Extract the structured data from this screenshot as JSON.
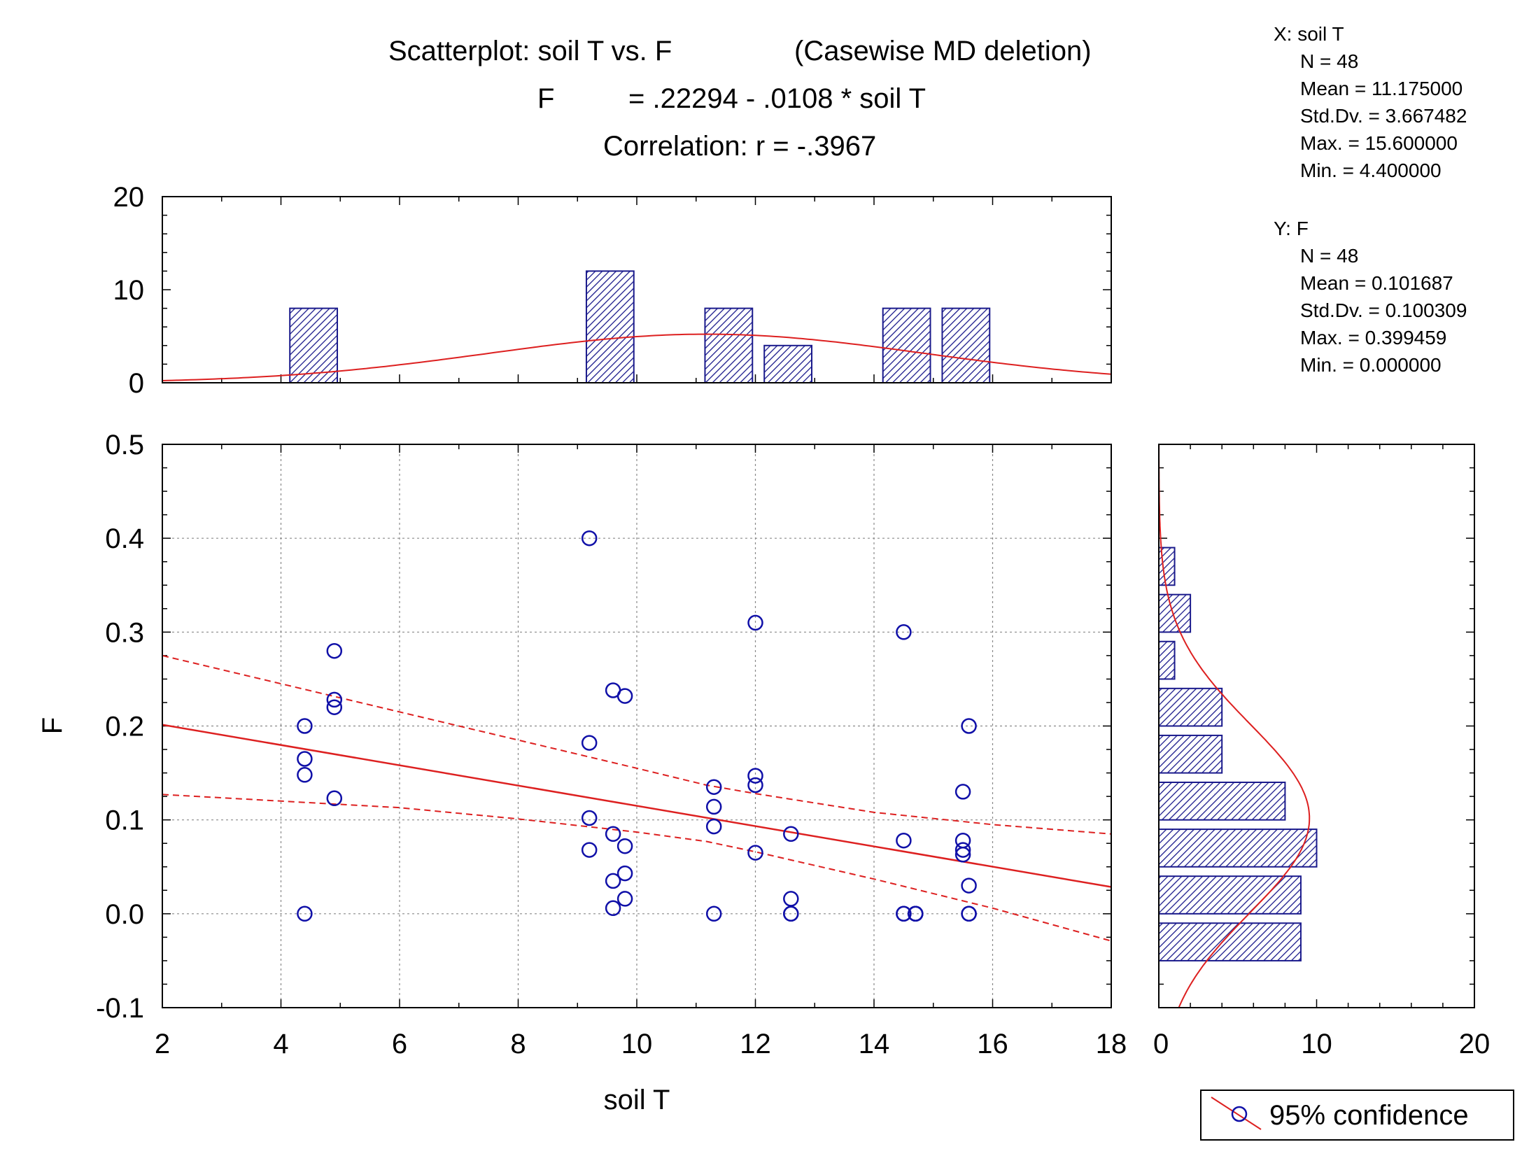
{
  "title": {
    "line1": "Scatterplot: soil T vs. F",
    "line1_suffix": "(Casewise MD deletion)",
    "line2_lhs": "F",
    "line2_rhs": "= .22294 - .0108  * soil T",
    "line3": "Correlation: r = -.3967"
  },
  "stats": {
    "x": [
      "X:  soil T",
      "N = 48",
      "Mean = 11.175000",
      "Std.Dv. = 3.667482",
      "Max. = 15.600000",
      "Min. = 4.400000"
    ],
    "y": [
      "Y:  F",
      "N = 48",
      "Mean = 0.101687",
      "Std.Dv. = 0.100309",
      "Max. = 0.399459",
      "Min. = 0.000000"
    ]
  },
  "legend": {
    "label": "95% confidence"
  },
  "colors": {
    "points": "#1010a8",
    "fit": "#dd2020",
    "bars": "#1a1a8c",
    "grid": "#888888"
  },
  "chart_data": [
    {
      "type": "scatter",
      "name": "main",
      "xlabel": "soil T",
      "ylabel": "F",
      "xlim": [
        2,
        18
      ],
      "ylim": [
        -0.1,
        0.5
      ],
      "xticks": [
        "2",
        "4",
        "6",
        "8",
        "10",
        "12",
        "14",
        "16",
        "18"
      ],
      "yticks": [
        "-0.1",
        "0.0",
        "0.1",
        "0.2",
        "0.3",
        "0.4",
        "0.5"
      ],
      "grid": true,
      "points": [
        [
          4.4,
          0.0
        ],
        [
          4.4,
          0.2
        ],
        [
          4.4,
          0.165
        ],
        [
          4.4,
          0.148
        ],
        [
          4.9,
          0.28
        ],
        [
          4.9,
          0.228
        ],
        [
          4.9,
          0.22
        ],
        [
          4.9,
          0.123
        ],
        [
          9.2,
          0.4
        ],
        [
          9.2,
          0.182
        ],
        [
          9.2,
          0.102
        ],
        [
          9.2,
          0.068
        ],
        [
          9.6,
          0.238
        ],
        [
          9.6,
          0.085
        ],
        [
          9.6,
          0.035
        ],
        [
          9.6,
          0.006
        ],
        [
          9.8,
          0.232
        ],
        [
          9.8,
          0.072
        ],
        [
          9.8,
          0.043
        ],
        [
          9.8,
          0.016
        ],
        [
          11.3,
          0.135
        ],
        [
          11.3,
          0.114
        ],
        [
          11.3,
          0.093
        ],
        [
          11.3,
          0.0
        ],
        [
          12.0,
          0.31
        ],
        [
          12.0,
          0.147
        ],
        [
          12.0,
          0.137
        ],
        [
          12.0,
          0.065
        ],
        [
          12.6,
          0.085
        ],
        [
          12.6,
          0.016
        ],
        [
          12.6,
          0.0
        ],
        [
          12.6,
          0.0
        ],
        [
          14.5,
          0.3
        ],
        [
          14.5,
          0.078
        ],
        [
          14.5,
          0.0
        ],
        [
          14.5,
          0.0
        ],
        [
          14.7,
          0.0
        ],
        [
          14.7,
          0.0
        ],
        [
          14.7,
          0.0
        ],
        [
          14.7,
          0.0
        ],
        [
          15.5,
          0.13
        ],
        [
          15.5,
          0.078
        ],
        [
          15.5,
          0.068
        ],
        [
          15.5,
          0.063
        ],
        [
          15.6,
          0.2
        ],
        [
          15.6,
          0.03
        ],
        [
          15.6,
          0.0
        ],
        [
          15.6,
          0.0
        ]
      ],
      "fit": {
        "intercept": 0.22294,
        "slope": -0.0108
      },
      "confidence_band": {
        "x": [
          2,
          4,
          6,
          8,
          10,
          11.175,
          12,
          14,
          16,
          18
        ],
        "upper": [
          0.275,
          0.245,
          0.215,
          0.185,
          0.155,
          0.137,
          0.128,
          0.108,
          0.095,
          0.085
        ],
        "lower": [
          0.127,
          0.12,
          0.113,
          0.101,
          0.087,
          0.077,
          0.066,
          0.037,
          0.006,
          -0.029
        ]
      }
    },
    {
      "type": "bar",
      "name": "x-histogram",
      "xlim": [
        2,
        18
      ],
      "ylim": [
        0,
        20
      ],
      "yticks": [
        "0",
        "10",
        "20"
      ],
      "bins": [
        {
          "from": 4.15,
          "to": 4.95,
          "count": 8
        },
        {
          "from": 9.15,
          "to": 9.95,
          "count": 12
        },
        {
          "from": 11.15,
          "to": 11.95,
          "count": 8
        },
        {
          "from": 12.15,
          "to": 12.95,
          "count": 4
        },
        {
          "from": 14.15,
          "to": 14.95,
          "count": 8
        },
        {
          "from": 15.15,
          "to": 15.95,
          "count": 8
        }
      ],
      "normal_curve": {
        "mean": 11.175,
        "sd": 3.667482,
        "bin_width": 1,
        "n": 48
      }
    },
    {
      "type": "bar",
      "name": "y-histogram",
      "orientation": "horizontal",
      "xlim": [
        0,
        20
      ],
      "ylim": [
        -0.1,
        0.5
      ],
      "xticks": [
        "0",
        "10",
        "20"
      ],
      "bins": [
        {
          "from": 0.35,
          "to": 0.39,
          "count": 1
        },
        {
          "from": 0.3,
          "to": 0.34,
          "count": 2
        },
        {
          "from": 0.25,
          "to": 0.29,
          "count": 1
        },
        {
          "from": 0.2,
          "to": 0.24,
          "count": 4
        },
        {
          "from": 0.15,
          "to": 0.19,
          "count": 4
        },
        {
          "from": 0.1,
          "to": 0.14,
          "count": 8
        },
        {
          "from": 0.05,
          "to": 0.09,
          "count": 10
        },
        {
          "from": 0.0,
          "to": 0.04,
          "count": 9
        },
        {
          "from": -0.05,
          "to": -0.01,
          "count": 9
        }
      ],
      "normal_curve": {
        "mean": 0.101687,
        "sd": 0.100309,
        "bin_width": 0.05,
        "n": 48
      }
    }
  ]
}
